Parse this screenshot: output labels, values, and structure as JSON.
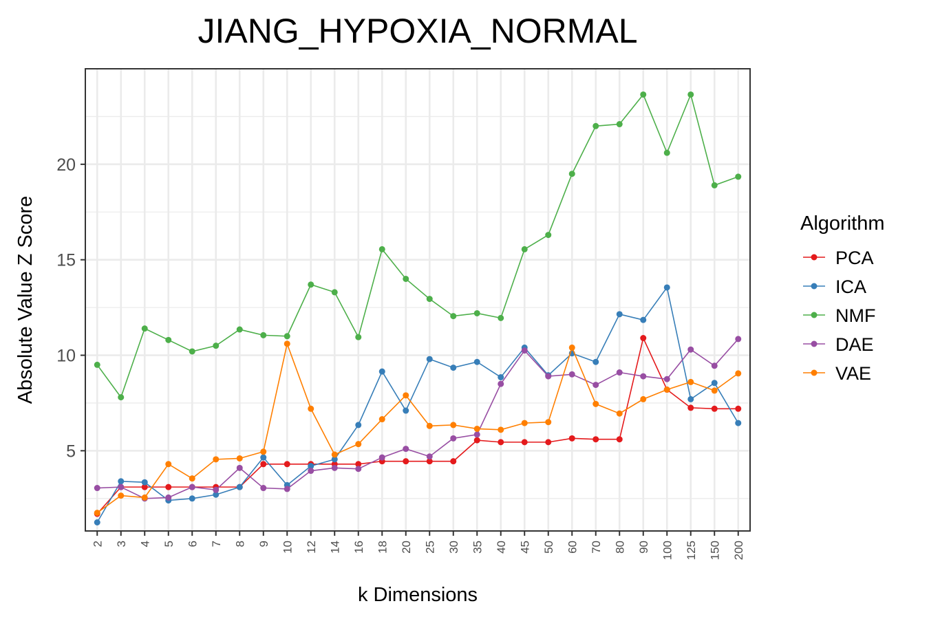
{
  "chart_data": {
    "type": "line",
    "title": "JIANG_HYPOXIA_NORMAL",
    "xlabel": "k Dimensions",
    "ylabel": "Absolute Value Z Score",
    "categories": [
      "2",
      "3",
      "4",
      "5",
      "6",
      "7",
      "8",
      "9",
      "10",
      "12",
      "14",
      "16",
      "18",
      "20",
      "25",
      "30",
      "35",
      "40",
      "45",
      "50",
      "60",
      "70",
      "80",
      "90",
      "100",
      "125",
      "150",
      "200"
    ],
    "yticks": [
      5,
      10,
      15,
      20
    ],
    "ylim": [
      0.8,
      25.0
    ],
    "grid": true,
    "legend": {
      "title": "Algorithm",
      "position": "right"
    },
    "series": [
      {
        "name": "PCA",
        "color": "#E41A1C",
        "values": [
          1.7,
          3.1,
          3.1,
          3.1,
          3.1,
          3.1,
          3.1,
          4.3,
          4.3,
          4.3,
          4.3,
          4.3,
          4.45,
          4.45,
          4.45,
          4.45,
          5.55,
          5.45,
          5.45,
          5.45,
          5.65,
          5.6,
          5.6,
          10.9,
          8.2,
          7.25,
          7.2,
          7.2
        ]
      },
      {
        "name": "ICA",
        "color": "#377EB8",
        "values": [
          1.25,
          3.4,
          3.35,
          2.4,
          2.5,
          2.7,
          3.1,
          4.65,
          3.2,
          4.2,
          4.55,
          6.35,
          9.15,
          7.1,
          9.8,
          9.35,
          9.65,
          8.85,
          10.4,
          8.95,
          10.1,
          9.65,
          12.15,
          11.85,
          13.55,
          7.7,
          8.55,
          6.45
        ]
      },
      {
        "name": "NMF",
        "color": "#4DAF4A",
        "values": [
          9.5,
          7.8,
          11.4,
          10.8,
          10.2,
          10.5,
          11.35,
          11.05,
          11.0,
          13.7,
          13.3,
          10.95,
          15.55,
          14.0,
          12.95,
          12.05,
          12.2,
          11.95,
          15.55,
          16.3,
          19.5,
          22.0,
          22.1,
          23.65,
          20.6,
          23.65,
          18.9,
          19.35
        ]
      },
      {
        "name": "DAE",
        "color": "#984EA3",
        "values": [
          3.05,
          3.1,
          2.5,
          2.55,
          3.1,
          2.95,
          4.1,
          3.05,
          3.0,
          3.95,
          4.1,
          4.05,
          4.65,
          5.1,
          4.7,
          5.65,
          5.85,
          8.5,
          10.25,
          8.9,
          9.0,
          8.45,
          9.1,
          8.9,
          8.75,
          10.3,
          9.45,
          10.85
        ]
      },
      {
        "name": "VAE",
        "color": "#FF7F00",
        "values": [
          1.75,
          2.65,
          2.55,
          4.3,
          3.55,
          4.55,
          4.6,
          4.95,
          10.6,
          7.2,
          4.8,
          5.35,
          6.65,
          7.9,
          6.3,
          6.35,
          6.15,
          6.1,
          6.45,
          6.5,
          10.4,
          7.45,
          6.95,
          7.7,
          8.2,
          8.6,
          8.15,
          9.05
        ]
      }
    ]
  }
}
